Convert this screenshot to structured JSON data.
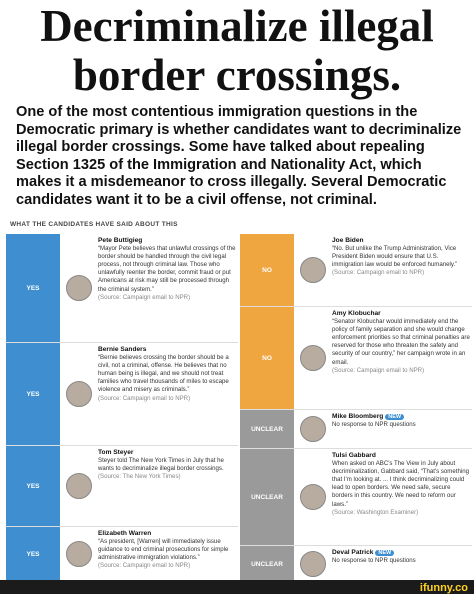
{
  "title": "Decriminalize illegal border crossings.",
  "intro": "One of the most contentious immigration questions in the Democratic primary is whether candidates want to decriminalize illegal border crossings. Some have talked about repealing Section 1325 of the Immigration and Nationality Act, which makes it a misdemeanor to cross illegally. Several Democratic candidates want it to be a civil offense, not criminal.",
  "section_heading": "WHAT THE CANDIDATES HAVE SAID ABOUT THIS",
  "left": [
    {
      "stance": "YES",
      "color": "#3f8fd0",
      "name": "Pete Buttigieg",
      "quote": "“Mayor Pete believes that unlawful crossings of the border should be handled through the civil legal process, not through criminal law. Those who unlawfully reenter the border, commit fraud or put Americans at risk may still be processed through the criminal system.”",
      "source": "(Source: Campaign email to NPR)"
    },
    {
      "stance": "YES",
      "color": "#3f8fd0",
      "name": "Bernie Sanders",
      "quote": "“Bernie believes crossing the border should be a civil, not a criminal, offense. He believes that no human being is illegal, and we should not treat families who travel thousands of miles to escape violence and misery as criminals.”",
      "source": "(Source: Campaign email to NPR)"
    },
    {
      "stance": "YES",
      "color": "#3f8fd0",
      "name": "Tom Steyer",
      "quote": "Steyer told The New York Times in July that he wants to decriminalize illegal border crossings.",
      "source": "(Source: The New York Times)"
    },
    {
      "stance": "YES",
      "color": "#3f8fd0",
      "name": "Elizabeth Warren",
      "quote": "“As president, [Warren] will immediately issue guidance to end criminal prosecutions for simple administrative immigration violations.”",
      "source": "(Source: Campaign email to NPR)"
    }
  ],
  "right": [
    {
      "stance": "NO",
      "color": "#f0a640",
      "name": "Joe Biden",
      "quote": "“No. But unlike the Trump Administration, Vice President Biden would ensure that U.S. immigration law would be enforced humanely.”",
      "source": "(Source: Campaign email to NPR)"
    },
    {
      "stance": "NO",
      "color": "#f0a640",
      "name": "Amy Klobuchar",
      "quote": "“Senator Klobuchar would immediately end the policy of family separation and she would change enforcement priorities so that criminal penalties are reserved for those who threaten the safety and security of our country,” her campaign wrote in an email.",
      "source": "(Source: Campaign email to NPR)"
    },
    {
      "stance": "UNCLEAR",
      "color": "#9a9a9a",
      "name": "Mike Bloomberg",
      "badge": "NEW",
      "quote": "No response to NPR questions"
    },
    {
      "stance": "UNCLEAR",
      "color": "#9a9a9a",
      "name": "Tulsi Gabbard",
      "quote": "When asked on ABC's The View in July about decriminalization, Gabbard said, “That's something that I'm looking at. ... I think decriminalizing could lead to open borders. We need safe, secure borders in this country. We need to reform our laws.”",
      "source": "(Source: Washington Examiner)"
    },
    {
      "stance": "UNCLEAR",
      "color": "#9a9a9a",
      "name": "Deval Patrick",
      "badge": "NEW",
      "quote": "No response to NPR questions"
    }
  ],
  "watermark": "ifunny.co"
}
